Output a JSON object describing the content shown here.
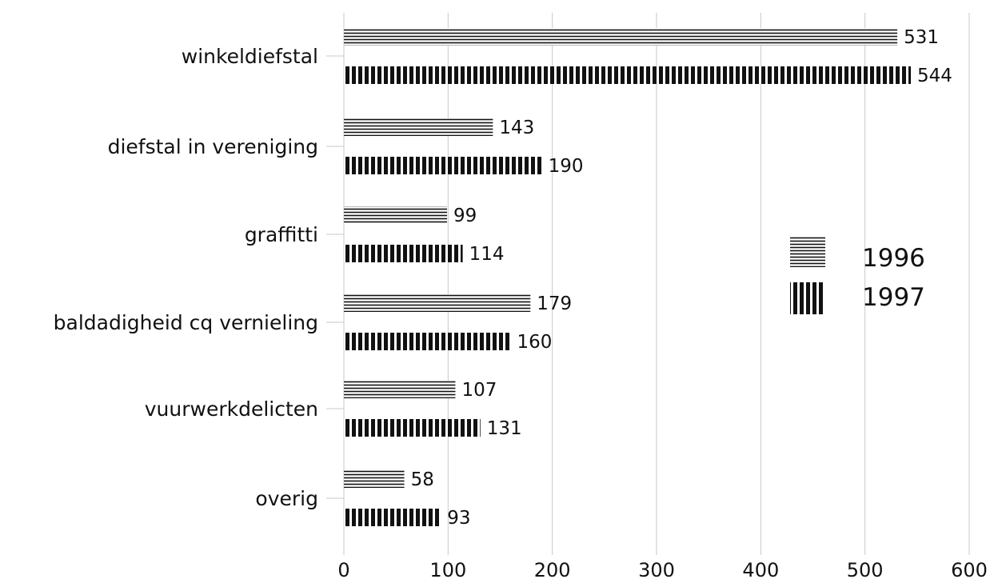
{
  "chart_data": {
    "type": "bar",
    "orientation": "horizontal",
    "categories": [
      "winkeldiefstal",
      "diefstal in vereniging",
      "graffitti",
      "baldadigheid cq vernieling",
      "vuurwerkdelicten",
      "overig"
    ],
    "series": [
      {
        "name": "1996",
        "values": [
          531,
          143,
          99,
          179,
          107,
          58
        ],
        "pattern": "horizontal-lines"
      },
      {
        "name": "1997",
        "values": [
          544,
          190,
          114,
          160,
          131,
          93
        ],
        "pattern": "vertical-stripes"
      }
    ],
    "xlim": [
      0,
      600
    ],
    "xticks": [
      "0",
      "100",
      "200",
      "300",
      "400",
      "500",
      "600"
    ],
    "grid": "vertical",
    "legend": "right",
    "colors": {
      "ink": "#111111",
      "grid": "#c8c8c8",
      "background": "#ffffff"
    }
  }
}
